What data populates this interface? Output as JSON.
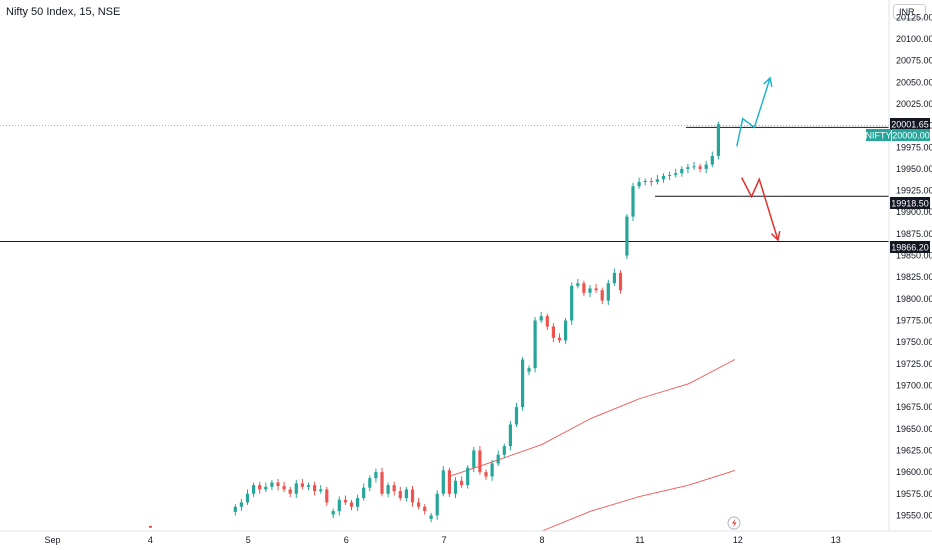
{
  "header": {
    "symbol": "Nifty 50 Index, 15, NSE",
    "currency": "INR"
  },
  "price_tags": {
    "current": "20001.65",
    "ticker_label": "NIFTY",
    "ticker_value": "20000.00",
    "line1": "19918.50",
    "line2": "19866.20"
  },
  "colors": {
    "up": "#26a69a",
    "down": "#ef5350",
    "projection_up": "#22b3c9",
    "projection_down": "#e0322e",
    "ma": "#f25555"
  },
  "chart_data": {
    "type": "candlestick",
    "ylim": [
      19532,
      20145
    ],
    "y_ticks": [
      19550,
      19575,
      19600,
      19625,
      19650,
      19675,
      19700,
      19725,
      19750,
      19775,
      19800,
      19825,
      19850,
      19875,
      19900,
      19925,
      19950,
      19975,
      20000,
      20025,
      20050,
      20075,
      20100,
      20125
    ],
    "x_ticks": [
      {
        "label": "Sep",
        "session": 0
      },
      {
        "label": "4",
        "session": 1
      },
      {
        "label": "5",
        "session": 2
      },
      {
        "label": "6",
        "session": 3
      },
      {
        "label": "7",
        "session": 4
      },
      {
        "label": "8",
        "session": 5
      },
      {
        "label": "11",
        "session": 6
      },
      {
        "label": "12",
        "session": 7
      },
      {
        "label": "13",
        "session": 8
      }
    ],
    "horizontal_levels": [
      {
        "value": 20000.0,
        "style": "dotted"
      },
      {
        "value": 19998.0,
        "style": "solid"
      },
      {
        "value": 19918.5,
        "style": "solid"
      },
      {
        "value": 19866.2,
        "style": "solid"
      }
    ],
    "sessions": [
      {
        "day": "5",
        "close": [
          19560,
          19565,
          19575,
          19585,
          19580,
          19583,
          19588,
          19584,
          19580,
          19575,
          19587,
          19583,
          19585,
          19578,
          19580,
          19565
        ]
      },
      {
        "day": "6",
        "close": [
          19555,
          19568,
          19565,
          19560,
          19570,
          19582,
          19593,
          19600,
          19575,
          19585,
          19578,
          19570,
          19580,
          19565,
          19560,
          19555
        ]
      },
      {
        "day": "7",
        "close": [
          19550,
          19575,
          19602,
          19575,
          19590,
          19585,
          19605,
          19625,
          19600,
          19595,
          19610,
          19620,
          19630,
          19655,
          19675,
          19730
        ]
      },
      {
        "day": "8",
        "close": [
          19720,
          19775,
          19780,
          19768,
          19755,
          19752,
          19775,
          19815,
          19818,
          19807,
          19812,
          19810,
          19798,
          19818,
          19830,
          19810
        ]
      },
      {
        "day": "11",
        "close": [
          19895,
          19930,
          19935,
          19936,
          19935,
          19938,
          19942,
          19943,
          19945,
          19950,
          19952,
          19953,
          19950,
          19955,
          19965,
          20001.65
        ]
      }
    ],
    "moving_averages": [
      {
        "points": [
          [
            4.05,
            19595
          ],
          [
            4.5,
            19612
          ],
          [
            5.0,
            19632
          ],
          [
            5.5,
            19662
          ],
          [
            6.0,
            19685
          ],
          [
            6.5,
            19702
          ],
          [
            6.97,
            19730
          ]
        ]
      },
      {
        "points": [
          [
            5.0,
            19532
          ],
          [
            5.5,
            19555
          ],
          [
            6.0,
            19572
          ],
          [
            6.5,
            19585
          ],
          [
            6.97,
            19602
          ]
        ]
      }
    ],
    "projections": [
      {
        "direction": "up",
        "points": [
          [
            6.99,
            19976
          ],
          [
            7.05,
            20008
          ],
          [
            7.17,
            19998
          ],
          [
            7.33,
            20055
          ]
        ]
      },
      {
        "direction": "down",
        "points": [
          [
            7.04,
            19940
          ],
          [
            7.14,
            19918
          ],
          [
            7.22,
            19938
          ],
          [
            7.41,
            19868
          ]
        ]
      }
    ]
  }
}
